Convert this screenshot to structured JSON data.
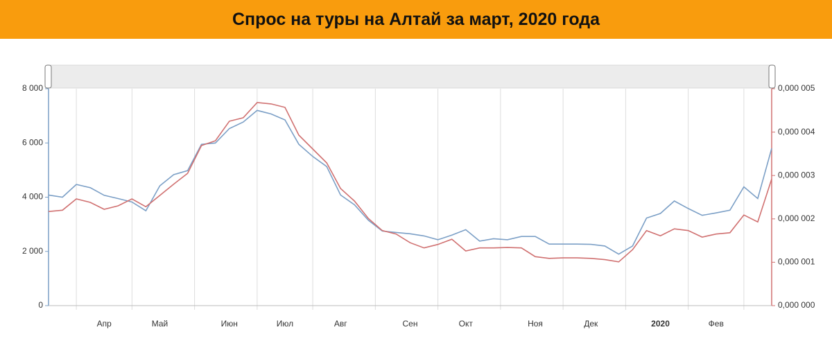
{
  "chart_data": {
    "type": "line",
    "title": "Спрос на туры на Алтай за март, 2020 года",
    "categories": [
      null,
      null,
      null,
      null,
      "Апр",
      null,
      null,
      null,
      "Май",
      null,
      null,
      null,
      null,
      "Июн",
      null,
      null,
      null,
      "Июл",
      null,
      null,
      null,
      "Авг",
      null,
      null,
      null,
      null,
      "Сен",
      null,
      null,
      null,
      "Окт",
      null,
      null,
      null,
      null,
      "Ноя",
      null,
      null,
      null,
      "Дек",
      null,
      null,
      null,
      null,
      "2020",
      null,
      null,
      null,
      "Фев",
      null,
      null,
      null,
      null
    ],
    "series": [
      {
        "color": "#7b9fc6",
        "values": [
          4080,
          4000,
          4470,
          4350,
          4070,
          3950,
          3820,
          3500,
          4420,
          4830,
          4980,
          5950,
          6000,
          6530,
          6770,
          7200,
          7070,
          6850,
          5950,
          5500,
          5130,
          4080,
          3720,
          3150,
          2750,
          2700,
          2650,
          2570,
          2430,
          2600,
          2800,
          2380,
          2470,
          2430,
          2550,
          2550,
          2270,
          2270,
          2270,
          2260,
          2200,
          1900,
          2200,
          3230,
          3400,
          3860,
          3580,
          3330,
          3420,
          3520,
          4380,
          3950,
          5800
        ]
      },
      {
        "color": "#d07070",
        "axis": "y2",
        "values": [
          2.17e-06,
          2.2e-06,
          2.46e-06,
          2.38e-06,
          2.22e-06,
          2.3e-06,
          2.46e-06,
          2.28e-06,
          2.54e-06,
          2.8e-06,
          3.05e-06,
          3.69e-06,
          3.8e-06,
          4.25e-06,
          4.33e-06,
          4.68e-06,
          4.65e-06,
          4.57e-06,
          3.93e-06,
          3.61e-06,
          3.29e-06,
          2.7e-06,
          2.41e-06,
          2.01e-06,
          1.73e-06,
          1.65e-06,
          1.45e-06,
          1.33e-06,
          1.41e-06,
          1.53e-06,
          1.26e-06,
          1.33e-06,
          1.33e-06,
          1.34e-06,
          1.33e-06,
          1.13e-06,
          1.09e-06,
          1.1e-06,
          1.1e-06,
          1.09e-06,
          1.06e-06,
          1.01e-06,
          1.29e-06,
          1.73e-06,
          1.61e-06,
          1.77e-06,
          1.73e-06,
          1.58e-06,
          1.65e-06,
          1.68e-06,
          2.09e-06,
          1.93e-06,
          2.92e-06
        ]
      }
    ],
    "ylim": [
      0,
      8000
    ],
    "yticks": [
      0,
      {
        "value": 2000,
        "label": "2 000"
      },
      {
        "value": 4000,
        "label": "4 000"
      },
      {
        "value": 6000,
        "label": "6 000"
      },
      {
        "value": 8000,
        "label": "8 000"
      }
    ],
    "y2lim": [
      0,
      5e-06
    ],
    "y2ticks": [
      {
        "value": 0,
        "label": "0,000 000"
      },
      {
        "value": 1e-06,
        "label": "0,000 001"
      },
      {
        "value": 2e-06,
        "label": "0,000 002"
      },
      {
        "value": 3e-06,
        "label": "0,000 003"
      },
      {
        "value": 4e-06,
        "label": "0,000 004"
      },
      {
        "value": 5e-06,
        "label": "0,000 005"
      }
    ],
    "bold_category": "2020"
  }
}
